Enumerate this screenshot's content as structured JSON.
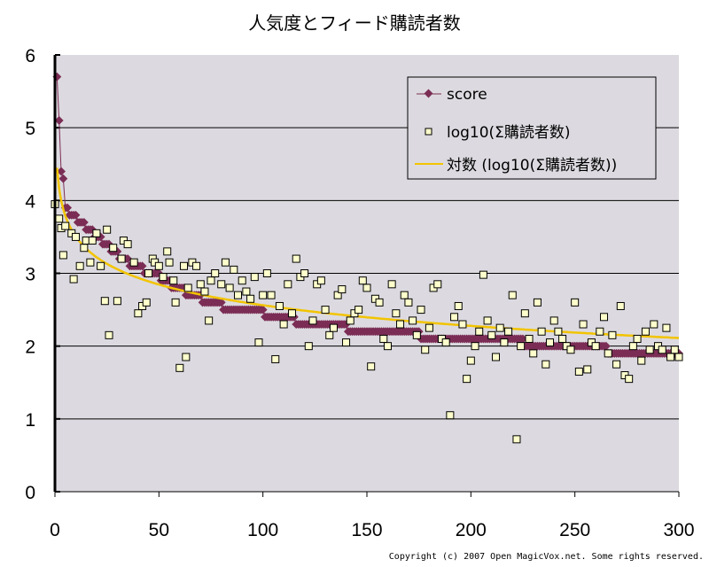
{
  "chart_data": {
    "type": "scatter",
    "title": "人気度とフィード購読者数",
    "xlabel": "",
    "ylabel": "",
    "xlim": [
      0,
      300
    ],
    "ylim": [
      0,
      6
    ],
    "x_ticks": [
      "0",
      "50",
      "100",
      "150",
      "200",
      "250",
      "300"
    ],
    "y_ticks": [
      "0",
      "1",
      "2",
      "3",
      "4",
      "5",
      "6"
    ],
    "grid": "horizontal",
    "legend_position": "top-right",
    "legend": [
      "score",
      "log10(Σ購読者数)",
      "対数 (log10(Σ購読者数))"
    ],
    "colors": {
      "plot_bg": "#dcdae0",
      "score": "#7b2d55",
      "log": "#ffffcc",
      "trend": "#f2c400"
    },
    "series": [
      {
        "name": "score",
        "kind": "line-markers",
        "runs_x_start_x_end_value": [
          [
            1,
            1,
            5.7
          ],
          [
            2,
            2,
            5.1
          ],
          [
            3,
            3,
            4.4
          ],
          [
            4,
            4,
            4.3
          ],
          [
            5,
            6,
            3.9
          ],
          [
            7,
            10,
            3.8
          ],
          [
            11,
            14,
            3.7
          ],
          [
            15,
            18,
            3.6
          ],
          [
            19,
            22,
            3.5
          ],
          [
            23,
            26,
            3.4
          ],
          [
            27,
            30,
            3.3
          ],
          [
            31,
            35,
            3.2
          ],
          [
            36,
            42,
            3.1
          ],
          [
            43,
            50,
            3.0
          ],
          [
            51,
            55,
            2.9
          ],
          [
            56,
            62,
            2.8
          ],
          [
            63,
            70,
            2.7
          ],
          [
            71,
            80,
            2.6
          ],
          [
            81,
            100,
            2.5
          ],
          [
            101,
            115,
            2.4
          ],
          [
            116,
            140,
            2.3
          ],
          [
            141,
            175,
            2.2
          ],
          [
            176,
            225,
            2.1
          ],
          [
            226,
            265,
            2.0
          ],
          [
            266,
            300,
            1.9
          ]
        ]
      },
      {
        "name": "log10(Σ購読者数)",
        "kind": "markers",
        "points": [
          [
            0,
            3.95
          ],
          [
            2,
            3.75
          ],
          [
            3,
            3.62
          ],
          [
            4,
            3.25
          ],
          [
            5,
            3.65
          ],
          [
            8,
            3.55
          ],
          [
            9,
            2.92
          ],
          [
            10,
            3.5
          ],
          [
            12,
            3.1
          ],
          [
            14,
            3.35
          ],
          [
            15,
            3.45
          ],
          [
            17,
            3.15
          ],
          [
            18,
            3.45
          ],
          [
            20,
            3.55
          ],
          [
            22,
            3.1
          ],
          [
            24,
            2.62
          ],
          [
            25,
            3.6
          ],
          [
            26,
            2.15
          ],
          [
            28,
            3.35
          ],
          [
            30,
            2.62
          ],
          [
            32,
            3.2
          ],
          [
            33,
            3.45
          ],
          [
            35,
            3.4
          ],
          [
            38,
            3.15
          ],
          [
            40,
            2.45
          ],
          [
            42,
            2.55
          ],
          [
            44,
            2.6
          ],
          [
            45,
            3.0
          ],
          [
            47,
            3.2
          ],
          [
            48,
            3.15
          ],
          [
            50,
            3.1
          ],
          [
            52,
            2.95
          ],
          [
            54,
            3.3
          ],
          [
            55,
            3.15
          ],
          [
            57,
            2.9
          ],
          [
            58,
            2.6
          ],
          [
            60,
            1.7
          ],
          [
            62,
            3.1
          ],
          [
            63,
            1.85
          ],
          [
            64,
            2.8
          ],
          [
            66,
            3.15
          ],
          [
            68,
            3.1
          ],
          [
            70,
            2.85
          ],
          [
            72,
            2.75
          ],
          [
            74,
            2.35
          ],
          [
            75,
            2.9
          ],
          [
            77,
            3.0
          ],
          [
            80,
            2.85
          ],
          [
            82,
            3.15
          ],
          [
            84,
            2.8
          ],
          [
            86,
            3.05
          ],
          [
            88,
            2.7
          ],
          [
            90,
            2.9
          ],
          [
            92,
            2.75
          ],
          [
            94,
            2.65
          ],
          [
            96,
            2.95
          ],
          [
            98,
            2.05
          ],
          [
            100,
            2.7
          ],
          [
            102,
            3.0
          ],
          [
            104,
            2.7
          ],
          [
            106,
            1.82
          ],
          [
            108,
            2.55
          ],
          [
            110,
            2.3
          ],
          [
            112,
            2.85
          ],
          [
            114,
            2.45
          ],
          [
            116,
            3.2
          ],
          [
            118,
            2.95
          ],
          [
            120,
            3.0
          ],
          [
            122,
            2.0
          ],
          [
            124,
            2.35
          ],
          [
            126,
            2.85
          ],
          [
            128,
            2.9
          ],
          [
            130,
            2.5
          ],
          [
            132,
            2.15
          ],
          [
            134,
            2.25
          ],
          [
            136,
            2.7
          ],
          [
            138,
            2.78
          ],
          [
            140,
            2.05
          ],
          [
            142,
            2.35
          ],
          [
            144,
            2.45
          ],
          [
            146,
            2.5
          ],
          [
            148,
            2.9
          ],
          [
            150,
            2.8
          ],
          [
            152,
            1.72
          ],
          [
            154,
            2.65
          ],
          [
            156,
            2.6
          ],
          [
            158,
            2.1
          ],
          [
            160,
            2.0
          ],
          [
            162,
            2.85
          ],
          [
            164,
            2.45
          ],
          [
            166,
            2.3
          ],
          [
            168,
            2.7
          ],
          [
            170,
            2.6
          ],
          [
            172,
            2.35
          ],
          [
            174,
            2.15
          ],
          [
            176,
            2.5
          ],
          [
            178,
            1.95
          ],
          [
            180,
            2.25
          ],
          [
            182,
            2.8
          ],
          [
            184,
            2.85
          ],
          [
            186,
            2.1
          ],
          [
            188,
            2.05
          ],
          [
            190,
            1.05
          ],
          [
            192,
            2.4
          ],
          [
            194,
            2.55
          ],
          [
            196,
            2.3
          ],
          [
            198,
            1.55
          ],
          [
            200,
            1.8
          ],
          [
            202,
            2.0
          ],
          [
            204,
            2.2
          ],
          [
            206,
            2.98
          ],
          [
            208,
            2.35
          ],
          [
            210,
            2.15
          ],
          [
            212,
            1.85
          ],
          [
            214,
            2.25
          ],
          [
            216,
            2.05
          ],
          [
            218,
            2.2
          ],
          [
            220,
            2.7
          ],
          [
            222,
            0.72
          ],
          [
            224,
            2.0
          ],
          [
            226,
            2.45
          ],
          [
            228,
            2.1
          ],
          [
            230,
            1.9
          ],
          [
            232,
            2.6
          ],
          [
            234,
            2.2
          ],
          [
            236,
            1.75
          ],
          [
            238,
            2.05
          ],
          [
            240,
            2.35
          ],
          [
            242,
            2.2
          ],
          [
            244,
            2.1
          ],
          [
            246,
            2.0
          ],
          [
            248,
            1.95
          ],
          [
            250,
            2.6
          ],
          [
            252,
            1.65
          ],
          [
            254,
            2.3
          ],
          [
            256,
            1.68
          ],
          [
            258,
            2.05
          ],
          [
            260,
            2.0
          ],
          [
            262,
            2.2
          ],
          [
            264,
            2.4
          ],
          [
            266,
            1.9
          ],
          [
            268,
            2.15
          ],
          [
            270,
            1.75
          ],
          [
            272,
            2.55
          ],
          [
            274,
            1.6
          ],
          [
            276,
            1.55
          ],
          [
            278,
            2.0
          ],
          [
            280,
            2.1
          ],
          [
            282,
            1.8
          ],
          [
            284,
            2.2
          ],
          [
            286,
            1.95
          ],
          [
            288,
            2.3
          ],
          [
            290,
            2.0
          ],
          [
            292,
            1.95
          ],
          [
            294,
            2.25
          ],
          [
            296,
            1.85
          ],
          [
            298,
            1.95
          ],
          [
            300,
            1.85
          ]
        ]
      },
      {
        "name": "対数 (log10(Σ購読者数))",
        "kind": "log-trendline",
        "formula": "y = a*ln(x) + b",
        "a": -0.41,
        "b": 4.45
      }
    ]
  },
  "copyright": "Copyright (c) 2007 Open MagicVox.net. Some rights reserved."
}
